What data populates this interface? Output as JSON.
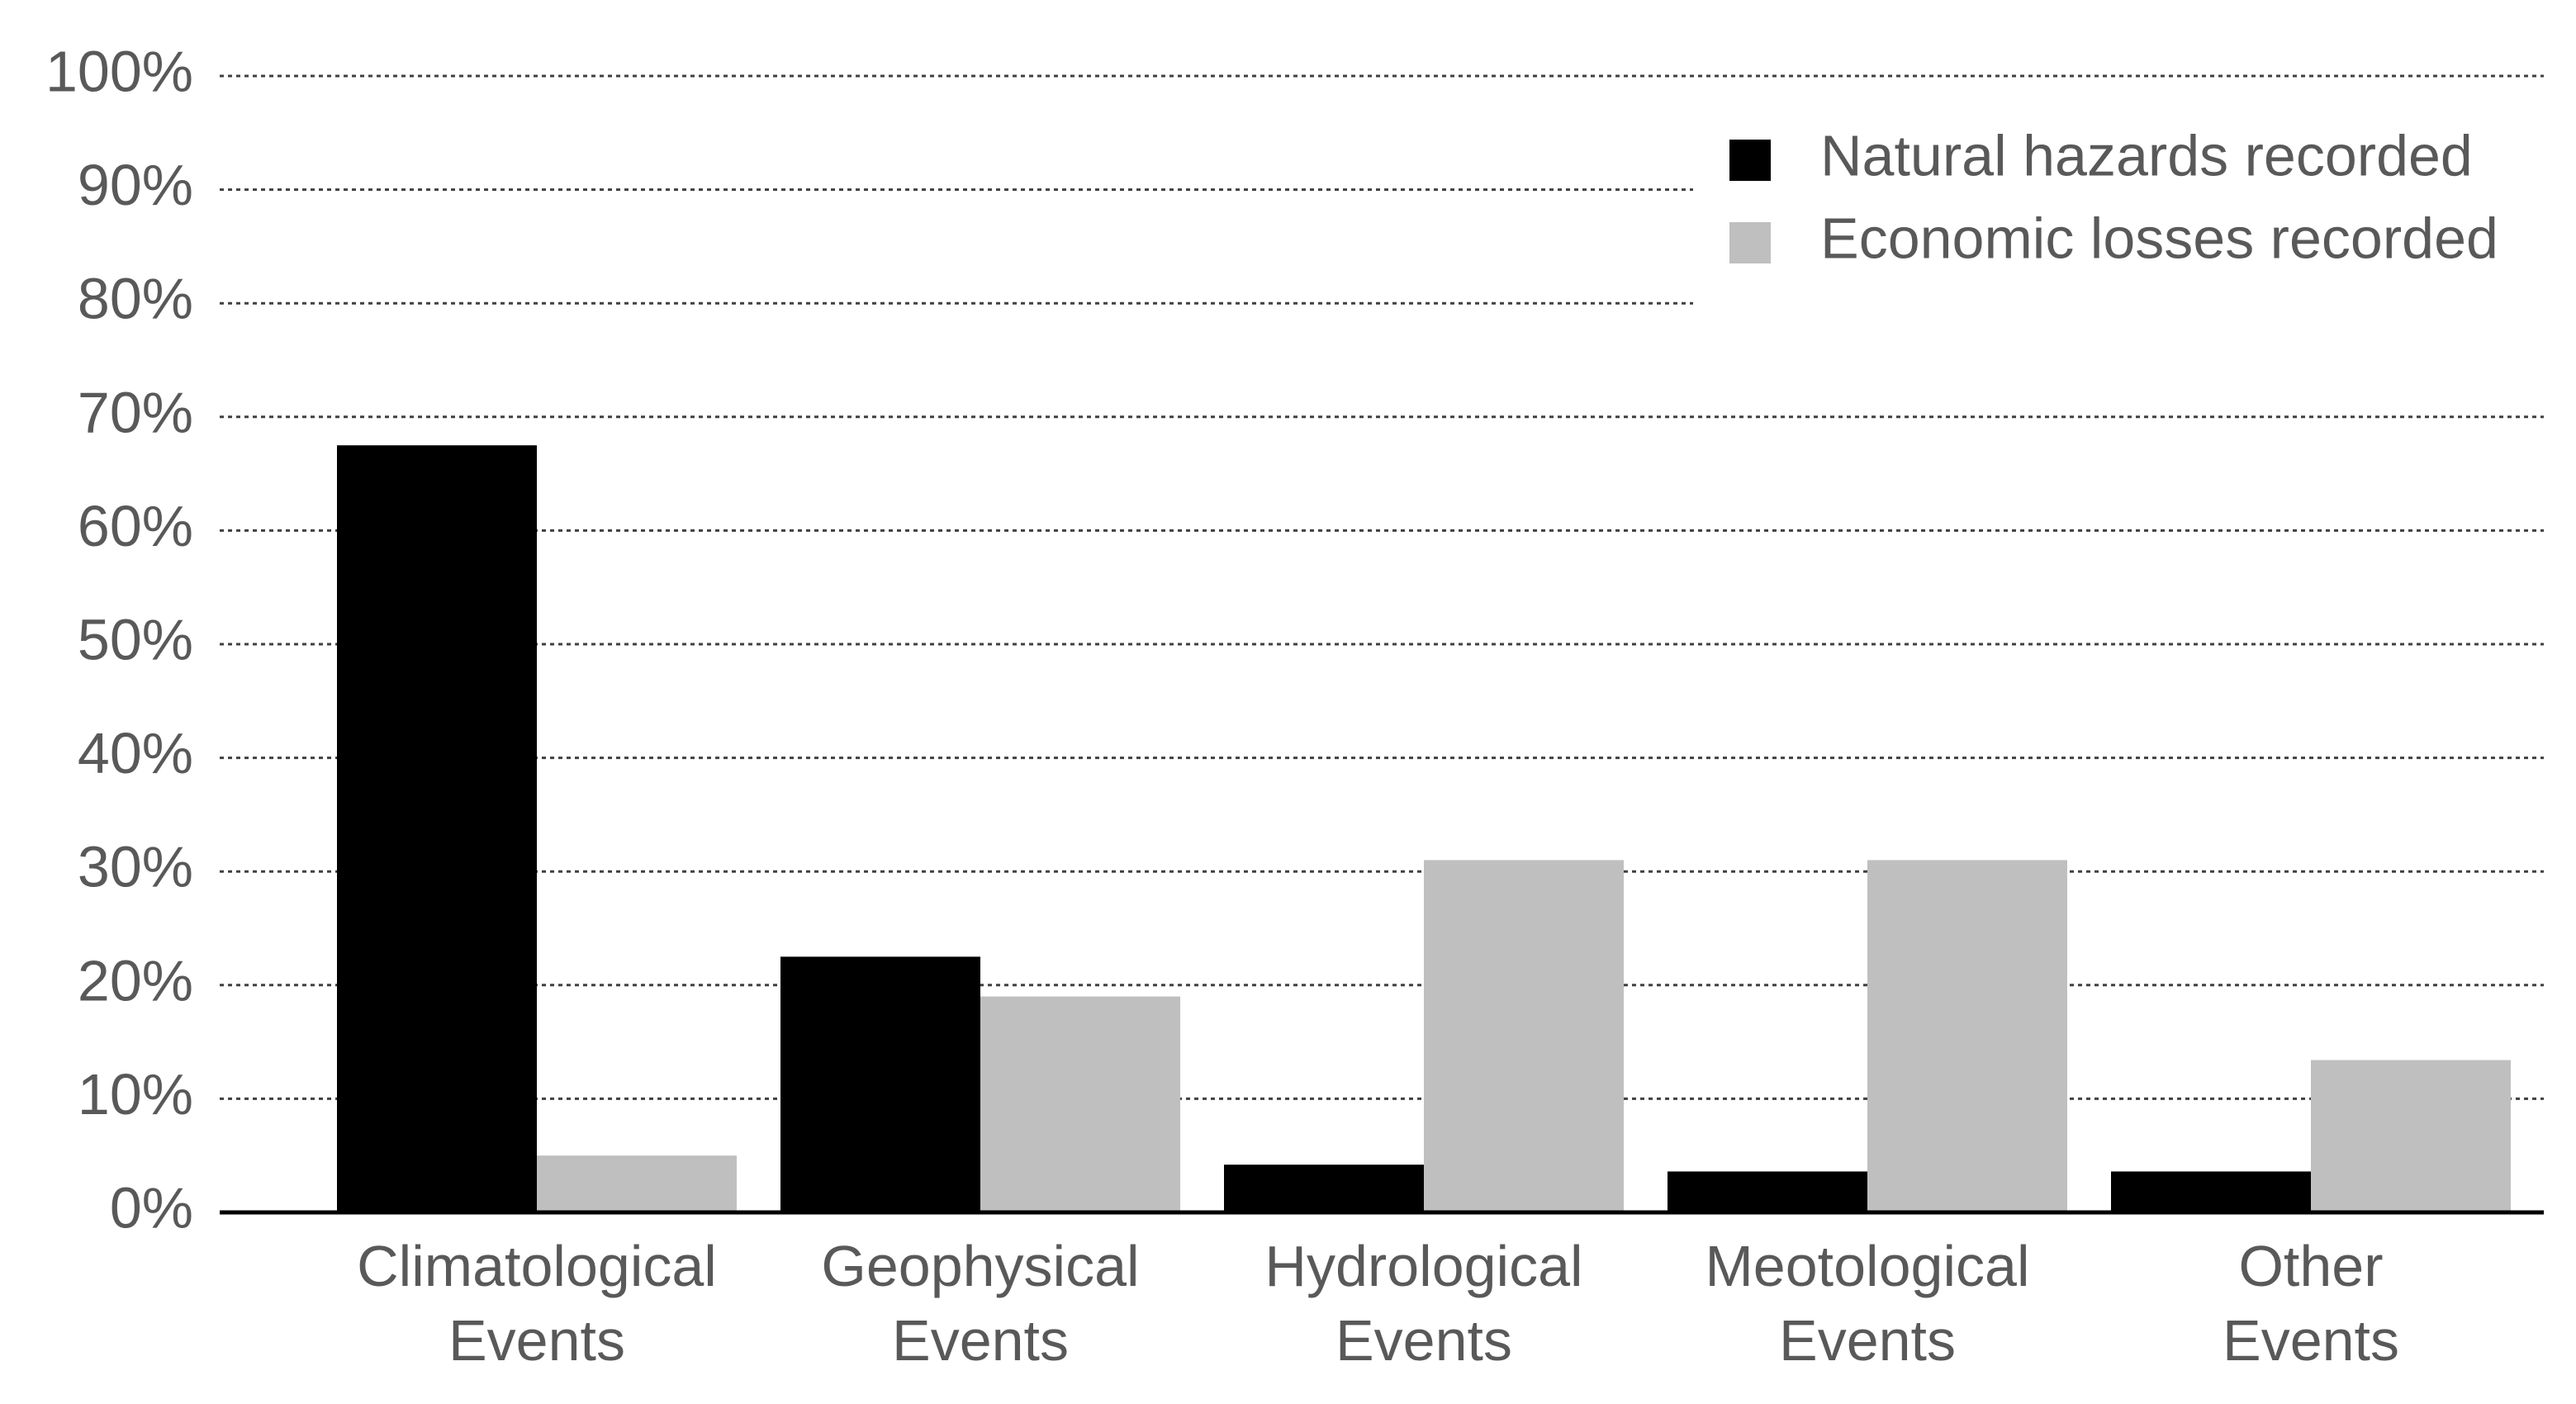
{
  "chart_data": {
    "type": "bar",
    "categories": [
      "Climatological Events",
      "Geophysical Events",
      "Hydrological Events",
      "Meotological Events",
      "Other Events"
    ],
    "series": [
      {
        "name": "Natural hazards recorded",
        "color": "#000000",
        "values": [
          67.5,
          22.5,
          4.2,
          3.6,
          3.6
        ]
      },
      {
        "name": "Economic losses recorded",
        "color": "#bfbfbf",
        "values": [
          5,
          19,
          31,
          31,
          13.4
        ]
      }
    ],
    "ylim": [
      0,
      100
    ],
    "yticks": [
      {
        "value": 0,
        "label": "0%"
      },
      {
        "value": 10,
        "label": "10%"
      },
      {
        "value": 20,
        "label": "20%"
      },
      {
        "value": 30,
        "label": "30%"
      },
      {
        "value": 40,
        "label": "40%"
      },
      {
        "value": 50,
        "label": "50%"
      },
      {
        "value": 60,
        "label": "60%"
      },
      {
        "value": 70,
        "label": "70%"
      },
      {
        "value": 80,
        "label": "80%"
      },
      {
        "value": 90,
        "label": "90%"
      },
      {
        "value": 100,
        "label": "100%"
      }
    ],
    "grid": true,
    "legend": "top-right"
  }
}
